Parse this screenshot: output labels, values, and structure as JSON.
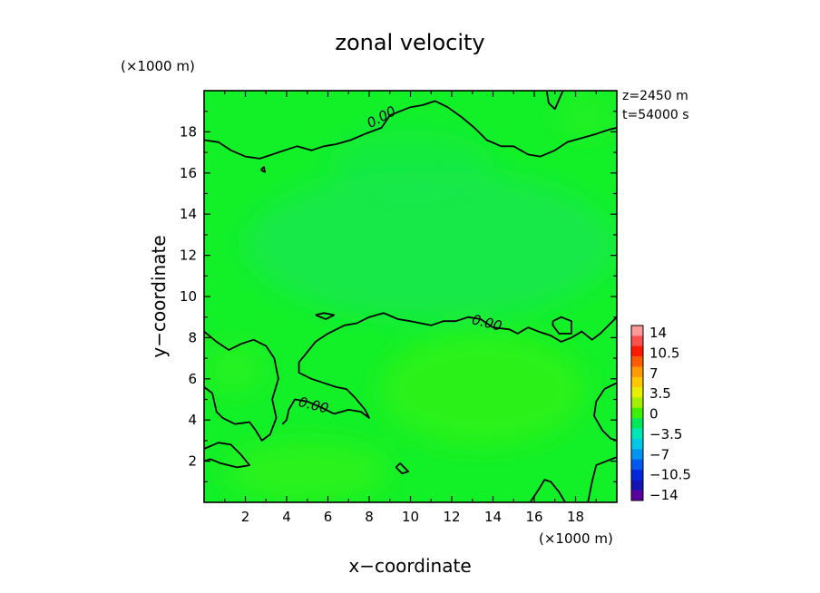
{
  "chart_data": {
    "type": "heatmap",
    "title": "zonal velocity",
    "xlabel": "x−coordinate",
    "ylabel": "y−coordinate",
    "x_unit": "(×1000 m)",
    "y_unit": "(×1000 m)",
    "xlim": [
      0,
      20
    ],
    "ylim": [
      0,
      20
    ],
    "x_ticks": [
      2,
      4,
      6,
      8,
      10,
      12,
      14,
      16,
      18
    ],
    "y_ticks": [
      2,
      4,
      6,
      8,
      10,
      12,
      14,
      16,
      18
    ],
    "annotations": [
      "z=2450 m",
      "t=54000 s"
    ],
    "contour_level": 0.0,
    "contour_labels": [
      {
        "text": "0.00",
        "x": 8.6,
        "y": 18.7
      },
      {
        "text": "0.00",
        "x": 13.7,
        "y": 8.7
      },
      {
        "text": "0.00",
        "x": 5.3,
        "y": 4.7
      }
    ],
    "colorbar": {
      "tick_labels": [
        "14",
        "10.5",
        "7",
        "3.5",
        "0",
        "−3.5",
        "−7",
        "−10.5",
        "−14"
      ],
      "levels_top_to_bottom": [
        14,
        12.25,
        10.5,
        8.75,
        7,
        5.25,
        3.5,
        1.75,
        0,
        -1.75,
        -3.5,
        -5.25,
        -7,
        -8.75,
        -10.5,
        -12.25,
        -14
      ],
      "colors_top_to_bottom": [
        "#ff9999",
        "#ff5050",
        "#ff1a00",
        "#ff5a00",
        "#ff9a00",
        "#ffc800",
        "#e6f000",
        "#a0f000",
        "#3cf000",
        "#00e85a",
        "#00e6b4",
        "#00c8e6",
        "#0096f0",
        "#005af0",
        "#0028dc",
        "#1414b4",
        "#5a00a0"
      ]
    },
    "field_colors": {
      "positive": "#2ef21a",
      "near_zero": "#12f028",
      "negative": "#14e850"
    },
    "contours": [
      [
        [
          0,
          17.6
        ],
        [
          0.7,
          17.5
        ],
        [
          1.3,
          17.1
        ],
        [
          2.0,
          16.8
        ],
        [
          2.7,
          16.7
        ],
        [
          3.3,
          16.9
        ],
        [
          3.9,
          17.1
        ],
        [
          4.5,
          17.3
        ],
        [
          5.2,
          17.1
        ],
        [
          5.8,
          17.3
        ],
        [
          6.4,
          17.4
        ],
        [
          7.1,
          17.6
        ],
        [
          7.8,
          17.9
        ],
        [
          8.6,
          18.2
        ],
        [
          9.0,
          18.8
        ],
        [
          9.5,
          19.0
        ],
        [
          10.0,
          19.2
        ],
        [
          10.6,
          19.3
        ],
        [
          11.2,
          19.5
        ],
        [
          11.8,
          19.2
        ],
        [
          12.5,
          18.7
        ],
        [
          13.1,
          18.2
        ],
        [
          13.7,
          17.6
        ],
        [
          14.4,
          17.3
        ],
        [
          15.0,
          17.3
        ],
        [
          15.7,
          16.9
        ],
        [
          16.3,
          16.8
        ],
        [
          17.0,
          17.1
        ],
        [
          17.6,
          17.5
        ],
        [
          18.3,
          17.7
        ],
        [
          19.0,
          17.9
        ],
        [
          19.6,
          18.1
        ],
        [
          20,
          18.2
        ]
      ],
      [
        [
          2.75,
          16.15
        ],
        [
          2.95,
          16.05
        ],
        [
          2.9,
          16.3
        ],
        [
          2.75,
          16.15
        ]
      ],
      [
        [
          16.6,
          20
        ],
        [
          16.7,
          19.4
        ],
        [
          17.0,
          19.1
        ],
        [
          17.3,
          19.8
        ],
        [
          17.4,
          20
        ]
      ],
      [
        [
          0,
          8.3
        ],
        [
          0.6,
          7.8
        ],
        [
          1.2,
          7.4
        ],
        [
          1.8,
          7.7
        ],
        [
          2.4,
          7.9
        ],
        [
          3.0,
          7.6
        ],
        [
          3.4,
          7.0
        ],
        [
          3.6,
          6.0
        ],
        [
          3.3,
          5.0
        ],
        [
          3.5,
          4.1
        ],
        [
          3.2,
          3.3
        ],
        [
          2.8,
          3.0
        ],
        [
          2.5,
          3.5
        ],
        [
          2.2,
          3.9
        ],
        [
          1.5,
          3.8
        ],
        [
          0.9,
          4.1
        ],
        [
          0.6,
          4.4
        ],
        [
          0.4,
          5.3
        ],
        [
          0,
          5.6
        ]
      ],
      [
        [
          20,
          9.0
        ],
        [
          19.6,
          8.6
        ],
        [
          19.2,
          8.2
        ],
        [
          18.8,
          7.9
        ],
        [
          18.3,
          8.3
        ],
        [
          17.8,
          8.0
        ],
        [
          17.3,
          7.8
        ],
        [
          16.8,
          8.1
        ],
        [
          16.2,
          8.3
        ],
        [
          15.7,
          8.5
        ],
        [
          15.2,
          8.2
        ],
        [
          14.8,
          8.4
        ],
        [
          14.0,
          8.5
        ],
        [
          13.4,
          8.9
        ],
        [
          12.8,
          9.0
        ],
        [
          12.2,
          8.8
        ],
        [
          11.6,
          8.8
        ],
        [
          11.0,
          8.6
        ],
        [
          10.5,
          8.7
        ],
        [
          10.0,
          8.8
        ],
        [
          9.4,
          8.9
        ],
        [
          8.7,
          9.2
        ],
        [
          8.0,
          9.0
        ],
        [
          7.4,
          8.7
        ],
        [
          6.8,
          8.6
        ],
        [
          6.0,
          8.2
        ],
        [
          5.4,
          7.8
        ],
        [
          5.0,
          7.3
        ],
        [
          4.6,
          6.8
        ],
        [
          4.6,
          6.3
        ],
        [
          5.2,
          6.0
        ],
        [
          5.8,
          5.8
        ],
        [
          6.4,
          5.6
        ],
        [
          6.9,
          5.5
        ],
        [
          7.3,
          5.1
        ],
        [
          7.8,
          4.5
        ],
        [
          8.0,
          4.1
        ],
        [
          7.6,
          4.4
        ],
        [
          7.0,
          4.5
        ],
        [
          6.3,
          4.3
        ],
        [
          5.7,
          4.6
        ],
        [
          5.0,
          4.9
        ],
        [
          4.4,
          5.0
        ],
        [
          4.1,
          4.5
        ],
        [
          4.0,
          4.0
        ],
        [
          3.8,
          3.8
        ]
      ],
      [
        [
          0,
          2.6
        ],
        [
          0.7,
          2.9
        ],
        [
          1.3,
          2.8
        ],
        [
          1.8,
          2.3
        ],
        [
          2.2,
          1.8
        ],
        [
          1.6,
          1.7
        ],
        [
          0.8,
          1.9
        ],
        [
          0.3,
          2.1
        ],
        [
          0,
          2.0
        ]
      ],
      [
        [
          5.4,
          9.1
        ],
        [
          5.8,
          9.2
        ],
        [
          6.3,
          9.1
        ],
        [
          5.9,
          8.9
        ],
        [
          5.4,
          9.1
        ]
      ],
      [
        [
          9.3,
          1.7
        ],
        [
          9.6,
          1.4
        ],
        [
          9.9,
          1.5
        ],
        [
          9.5,
          1.9
        ],
        [
          9.3,
          1.7
        ]
      ],
      [
        [
          16.9,
          8.8
        ],
        [
          17.3,
          9.0
        ],
        [
          17.8,
          8.8
        ],
        [
          17.8,
          8.2
        ],
        [
          17.2,
          8.2
        ],
        [
          16.9,
          8.6
        ],
        [
          16.9,
          8.8
        ]
      ],
      [
        [
          20,
          5.8
        ],
        [
          19.4,
          5.5
        ],
        [
          19.0,
          4.9
        ],
        [
          18.9,
          4.2
        ],
        [
          19.3,
          3.5
        ],
        [
          19.7,
          3.1
        ],
        [
          20,
          3.0
        ]
      ],
      [
        [
          20,
          2.2
        ],
        [
          19.5,
          2.0
        ],
        [
          19.0,
          1.8
        ],
        [
          18.8,
          1.0
        ],
        [
          18.6,
          0
        ]
      ],
      [
        [
          15.8,
          0
        ],
        [
          16.2,
          0.6
        ],
        [
          16.5,
          1.1
        ],
        [
          16.8,
          1.0
        ],
        [
          17.2,
          0.5
        ],
        [
          17.5,
          0
        ]
      ]
    ]
  }
}
